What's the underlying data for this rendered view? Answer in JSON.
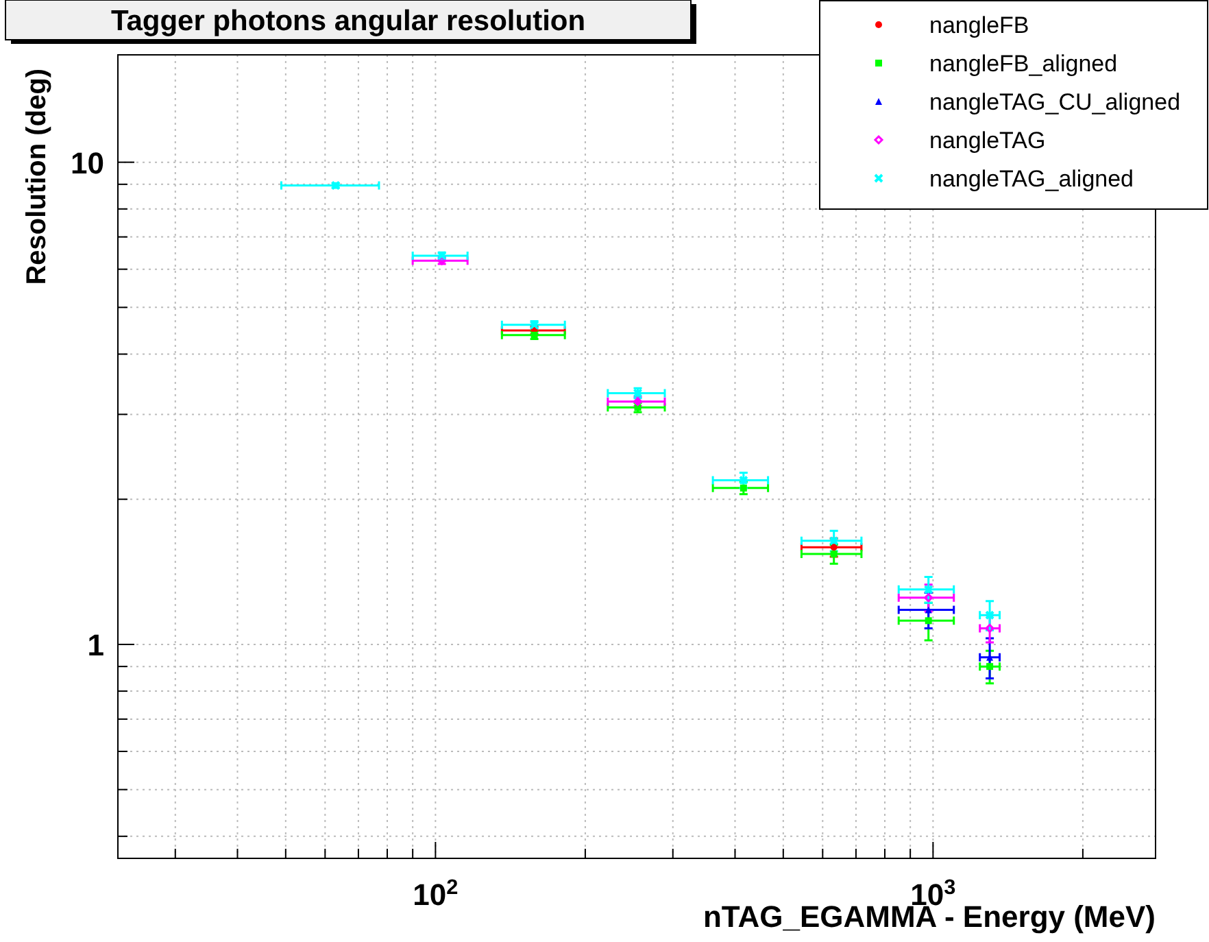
{
  "chart_data": {
    "type": "scatter",
    "title": "Tagger photons angular resolution",
    "xlabel": "nTAG_EGAMMA - Energy (MeV)",
    "ylabel": "Resolution (deg)",
    "log": "xy",
    "grid": true,
    "legend": "top right",
    "xlim": [
      23,
      2800
    ],
    "ylim": [
      0.36,
      16.7
    ],
    "xticks": [
      {
        "value": 30,
        "label": null
      },
      {
        "value": 40,
        "label": null
      },
      {
        "value": 50,
        "label": null
      },
      {
        "value": 60,
        "label": null
      },
      {
        "value": 70,
        "label": null
      },
      {
        "value": 80,
        "label": null
      },
      {
        "value": 90,
        "label": null
      },
      {
        "value": 100,
        "label": "10$^{2}$"
      },
      {
        "value": 200,
        "label": null
      },
      {
        "value": 300,
        "label": null
      },
      {
        "value": 400,
        "label": null
      },
      {
        "value": 500,
        "label": null
      },
      {
        "value": 600,
        "label": null
      },
      {
        "value": 700,
        "label": null
      },
      {
        "value": 800,
        "label": null
      },
      {
        "value": 900,
        "label": null
      },
      {
        "value": 1000,
        "label": "10$^{3}$"
      },
      {
        "value": 2000,
        "label": null
      }
    ],
    "yticks": [
      {
        "value": 0.4,
        "label": null
      },
      {
        "value": 0.5,
        "label": null
      },
      {
        "value": 0.6,
        "label": null
      },
      {
        "value": 0.7,
        "label": null
      },
      {
        "value": 0.8,
        "label": null
      },
      {
        "value": 0.9,
        "label": null
      },
      1,
      {
        "value": 2,
        "label": null
      },
      {
        "value": 3,
        "label": null
      },
      {
        "value": 4,
        "label": null
      },
      {
        "value": 5,
        "label": null
      },
      {
        "value": 6,
        "label": null
      },
      {
        "value": 7,
        "label": null
      },
      {
        "value": 8,
        "label": null
      },
      {
        "value": 9,
        "label": null
      },
      10
    ],
    "x": [
      63,
      103,
      158,
      255,
      416,
      632,
      979,
      1300
    ],
    "series": [
      {
        "name": "nangleFB",
        "color": "#ff0000",
        "marker": "circle",
        "values": [
          null,
          null,
          4.48,
          null,
          null,
          1.59,
          null,
          null
        ],
        "errors": [
          null,
          null,
          0.08,
          null,
          null,
          0.07,
          null,
          null
        ],
        "xerrors": [
          null,
          null,
          [
            136,
            182
          ],
          null,
          null,
          [
            544,
            718
          ],
          null,
          null
        ]
      },
      {
        "name": "nangleFB_aligned",
        "color": "#00ff00",
        "marker": "square",
        "values": [
          null,
          null,
          4.38,
          3.1,
          2.11,
          1.54,
          1.12,
          0.9
        ],
        "errors": [
          null,
          null,
          0.08,
          0.07,
          0.06,
          0.07,
          0.1,
          0.07
        ],
        "xerrors": [
          null,
          null,
          [
            136,
            182
          ],
          [
            222,
            289
          ],
          [
            361,
            466
          ],
          [
            544,
            718
          ],
          [
            853,
            1101
          ],
          [
            1242,
            1361
          ]
        ]
      },
      {
        "name": "nangleTAG_CU_aligned",
        "color": "#0000ff",
        "marker": "triangle",
        "values": [
          null,
          null,
          null,
          null,
          null,
          null,
          1.18,
          0.94
        ],
        "errors": [
          null,
          null,
          null,
          null,
          null,
          null,
          0.1,
          0.09
        ],
        "xerrors": [
          null,
          null,
          null,
          null,
          null,
          null,
          [
            853,
            1101
          ],
          [
            1242,
            1361
          ]
        ]
      },
      {
        "name": "nangleTAG",
        "color": "#ff00ff",
        "marker": "diamond",
        "values": [
          null,
          6.25,
          null,
          3.19,
          null,
          null,
          1.25,
          1.08
        ],
        "errors": [
          null,
          0.1,
          null,
          0.07,
          null,
          null,
          0.08,
          0.07
        ],
        "xerrors": [
          null,
          [
            90,
            116
          ],
          null,
          [
            222,
            289
          ],
          null,
          null,
          [
            853,
            1101
          ],
          [
            1242,
            1361
          ]
        ]
      },
      {
        "name": "nangleTAG_aligned",
        "color": "#00ffff",
        "marker": "cross",
        "values": [
          8.95,
          6.4,
          4.6,
          3.32,
          2.19,
          1.64,
          1.3,
          1.15
        ],
        "errors": [
          0.1,
          0.1,
          0.08,
          0.08,
          0.08,
          0.08,
          0.08,
          0.08
        ],
        "xerrors": [
          [
            49,
            77
          ],
          [
            90,
            116
          ],
          [
            136,
            182
          ],
          [
            222,
            289
          ],
          [
            361,
            466
          ],
          [
            544,
            718
          ],
          [
            853,
            1101
          ],
          [
            1242,
            1361
          ]
        ]
      }
    ]
  }
}
